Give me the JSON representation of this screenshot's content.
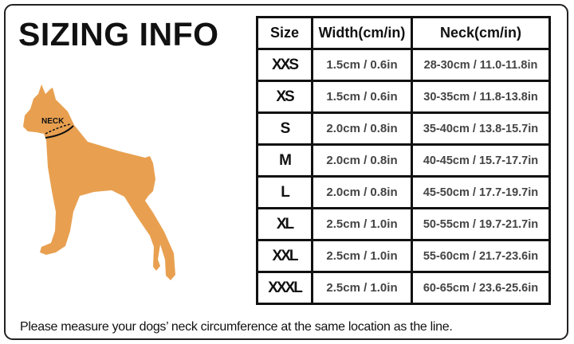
{
  "title": "SIZING INFO",
  "illustration": {
    "label": "NECK",
    "fill_color": "#E8A050"
  },
  "table": {
    "headers": [
      "Size",
      "Width(cm/in)",
      "Neck(cm/in)"
    ],
    "rows": [
      {
        "size": "XXS",
        "width": "1.5cm / 0.6in",
        "neck": "28-30cm / 11.0-11.8in"
      },
      {
        "size": "XS",
        "width": "1.5cm / 0.6in",
        "neck": "30-35cm / 11.8-13.8in"
      },
      {
        "size": "S",
        "width": "2.0cm / 0.8in",
        "neck": "35-40cm / 13.8-15.7in"
      },
      {
        "size": "M",
        "width": "2.0cm / 0.8in",
        "neck": "40-45cm / 15.7-17.7in"
      },
      {
        "size": "L",
        "width": "2.0cm / 0.8in",
        "neck": "45-50cm / 17.7-19.7in"
      },
      {
        "size": "XL",
        "width": "2.5cm / 1.0in",
        "neck": "50-55cm / 19.7-21.7in"
      },
      {
        "size": "XXL",
        "width": "2.5cm / 1.0in",
        "neck": "55-60cm / 21.7-23.6in"
      },
      {
        "size": "XXXL",
        "width": "2.5cm / 1.0in",
        "neck": "60-65cm / 23.6-25.6in"
      }
    ]
  },
  "note": "Please measure your dogs’  neck circumference at the same location as the line."
}
